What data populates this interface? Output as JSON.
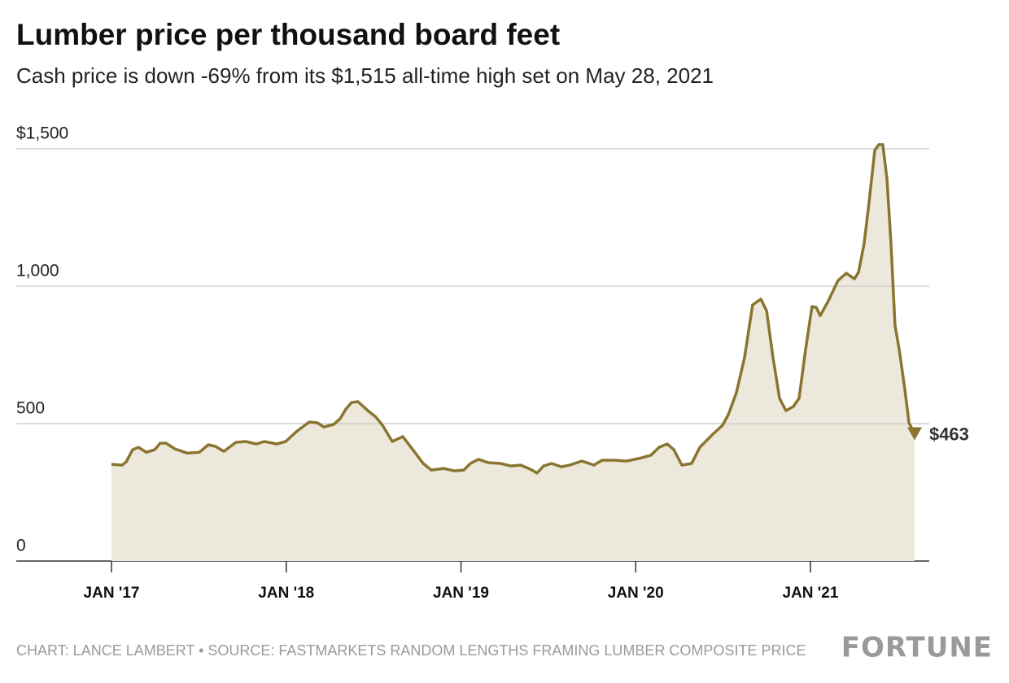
{
  "chart_data": {
    "type": "area",
    "title": "Lumber price per thousand board feet",
    "subtitle": "Cash price is down -69% from its $1,515 all-time high set on May 28, 2021",
    "x": [
      2017.0,
      2017.061,
      2017.084,
      2017.121,
      2017.154,
      2017.2,
      2017.247,
      2017.279,
      2017.312,
      2017.363,
      2017.433,
      2017.503,
      2017.554,
      2017.596,
      2017.643,
      2017.712,
      2017.768,
      2017.829,
      2017.875,
      2017.945,
      2017.997,
      2018.062,
      2018.132,
      2018.178,
      2018.215,
      2018.271,
      2018.309,
      2018.341,
      2018.374,
      2018.411,
      2018.467,
      2018.513,
      2018.551,
      2018.607,
      2018.667,
      2018.714,
      2018.784,
      2018.83,
      2018.9,
      2018.96,
      2019.016,
      2019.054,
      2019.1,
      2019.156,
      2019.226,
      2019.286,
      2019.342,
      2019.398,
      2019.435,
      2019.473,
      2019.519,
      2019.575,
      2019.622,
      2019.692,
      2019.761,
      2019.808,
      2019.878,
      2019.948,
      2020.018,
      2020.087,
      2020.134,
      2020.181,
      2020.218,
      2020.264,
      2020.32,
      2020.367,
      2020.437,
      2020.497,
      2020.53,
      2020.576,
      2020.623,
      2020.669,
      2020.716,
      2020.749,
      2020.786,
      2020.823,
      2020.86,
      2020.902,
      2020.935,
      2020.972,
      2021.009,
      2021.033,
      2021.056,
      2021.103,
      2021.158,
      2021.205,
      2021.252,
      2021.275,
      2021.307,
      2021.335,
      2021.368,
      2021.391,
      2021.414,
      2021.438,
      2021.461,
      2021.484,
      2021.508,
      2021.54,
      2021.564,
      2021.596
    ],
    "values": [
      352,
      349,
      361,
      405,
      414,
      396,
      405,
      429,
      429,
      408,
      393,
      396,
      423,
      417,
      399,
      432,
      435,
      426,
      435,
      426,
      435,
      473,
      506,
      503,
      488,
      497,
      518,
      553,
      577,
      580,
      547,
      524,
      494,
      435,
      453,
      414,
      355,
      331,
      337,
      328,
      331,
      355,
      370,
      358,
      355,
      346,
      349,
      334,
      320,
      346,
      355,
      343,
      349,
      364,
      349,
      367,
      367,
      364,
      373,
      385,
      414,
      426,
      405,
      349,
      355,
      414,
      459,
      494,
      533,
      612,
      740,
      932,
      953,
      911,
      740,
      592,
      547,
      562,
      592,
      769,
      926,
      923,
      893,
      947,
      1021,
      1047,
      1027,
      1050,
      1154,
      1302,
      1494,
      1515,
      1515,
      1391,
      1154,
      858,
      769,
      627,
      503,
      463
    ],
    "end_label": "$463",
    "xlim": [
      2016.455,
      2021.68
    ],
    "xticks": [
      {
        "value": 2017,
        "label": "JAN '17"
      },
      {
        "value": 2018,
        "label": "JAN '18"
      },
      {
        "value": 2019,
        "label": "JAN '19"
      },
      {
        "value": 2020,
        "label": "JAN '20"
      },
      {
        "value": 2021,
        "label": "JAN '21"
      }
    ],
    "ylim": [
      0,
      1500
    ],
    "yticks": [
      0,
      500,
      {
        "value": 1000,
        "label": "1,000"
      },
      {
        "value": 1500,
        "label": "$1,500"
      }
    ],
    "grid": true,
    "line_color": "#8a7530",
    "fill_color": "#ece9dc",
    "source": "CHART: LANCE LAMBERT • SOURCE: FASTMARKETS RANDOM LENGTHS FRAMING LUMBER COMPOSITE PRICE",
    "brand": "FORTUNE"
  }
}
